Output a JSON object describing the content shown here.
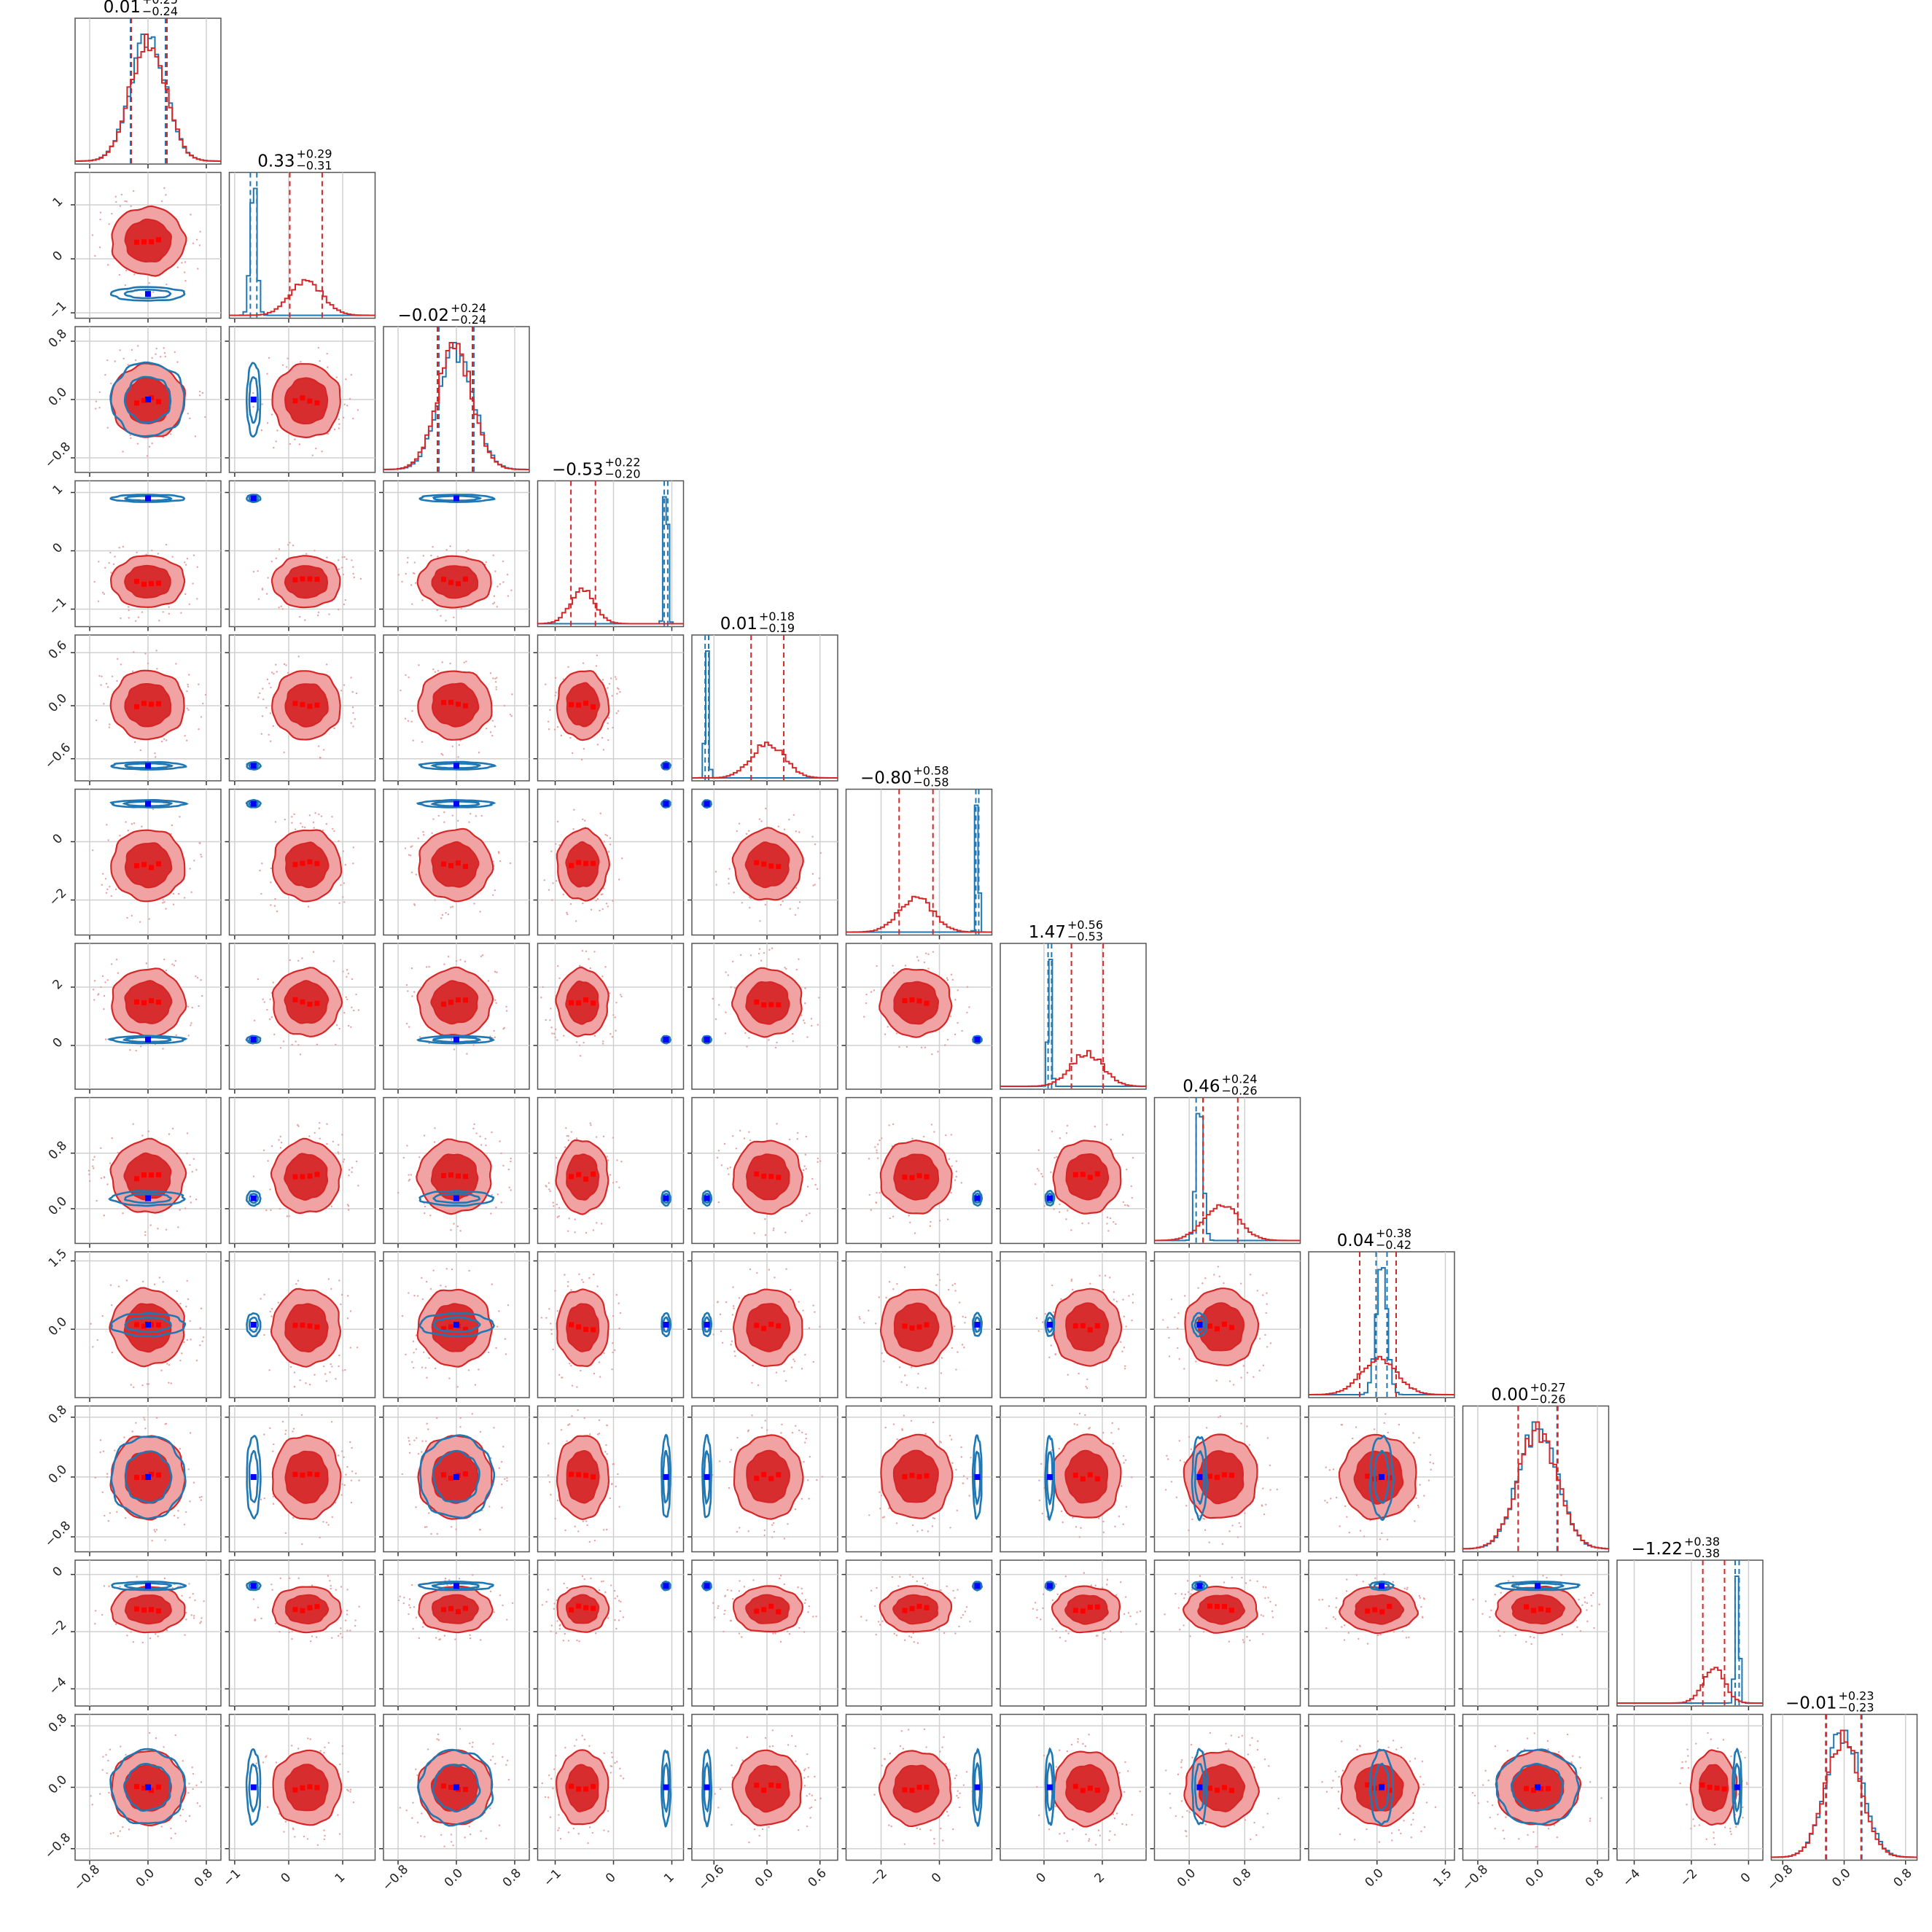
{
  "figure": {
    "type": "corner-plot",
    "n_params": 12,
    "series": [
      {
        "color": "#d62728",
        "fill_outer": "#f1a3a3",
        "fill_inner": "#d62728",
        "marker": "#ff0000"
      },
      {
        "color": "#1f77b4",
        "marker": "#0000ff"
      }
    ]
  },
  "chart_data": {
    "type": "corner",
    "params": [
      {
        "title": "0.01",
        "plus": "+0.25",
        "minus": "−0.24",
        "median": 0.01,
        "lo": -0.23,
        "hi": 0.26,
        "range": [
          -1.0,
          1.0
        ],
        "ticks": [
          "−0.8",
          "0.0",
          "0.8"
        ],
        "tick_values": [
          -0.8,
          0.0,
          0.8
        ],
        "red": {
          "m": 0.0,
          "s": 0.24
        },
        "blue": {
          "m": 0.0,
          "s": 0.24
        }
      },
      {
        "title": "0.33",
        "plus": "+0.29",
        "minus": "−0.31",
        "median": 0.33,
        "lo": 0.02,
        "hi": 0.62,
        "range": [
          -1.1,
          1.6
        ],
        "ticks": [
          "−1",
          "0",
          "1"
        ],
        "tick_values": [
          -1,
          0,
          1
        ],
        "red": {
          "m": 0.33,
          "s": 0.3
        },
        "blue": {
          "m": -0.65,
          "s": 0.06
        }
      },
      {
        "title": "−0.02",
        "plus": "+0.24",
        "minus": "−0.24",
        "median": -0.02,
        "lo": -0.26,
        "hi": 0.22,
        "range": [
          -1.0,
          1.0
        ],
        "ticks": [
          "−0.8",
          "0.0",
          "0.8"
        ],
        "tick_values": [
          -0.8,
          0.0,
          0.8
        ],
        "red": {
          "m": -0.02,
          "s": 0.24
        },
        "blue": {
          "m": 0.0,
          "s": 0.24
        }
      },
      {
        "title": "−0.53",
        "plus": "+0.22",
        "minus": "−0.20",
        "median": -0.53,
        "lo": -0.73,
        "hi": -0.31,
        "range": [
          -1.3,
          1.2
        ],
        "ticks": [
          "−1",
          "0",
          "1"
        ],
        "tick_values": [
          -1,
          0,
          1
        ],
        "red": {
          "m": -0.53,
          "s": 0.21
        },
        "blue": {
          "m": 0.9,
          "s": 0.03
        }
      },
      {
        "title": "0.01",
        "plus": "+0.18",
        "minus": "−0.19",
        "median": 0.01,
        "lo": -0.18,
        "hi": 0.19,
        "range": [
          -0.85,
          0.8
        ],
        "ticks": [
          "−0.6",
          "0.0",
          "0.6"
        ],
        "tick_values": [
          -0.6,
          0.0,
          0.6
        ],
        "red": {
          "m": 0.01,
          "s": 0.185
        },
        "blue": {
          "m": -0.68,
          "s": 0.02
        }
      },
      {
        "title": "−0.80",
        "plus": "+0.58",
        "minus": "−0.58",
        "median": -0.8,
        "lo": -1.38,
        "hi": -0.22,
        "range": [
          -3.2,
          1.8
        ],
        "ticks": [
          "−2",
          "0"
        ],
        "tick_values": [
          -2,
          0
        ],
        "red": {
          "m": -0.8,
          "s": 0.58
        },
        "blue": {
          "m": 1.3,
          "s": 0.05
        }
      },
      {
        "title": "1.47",
        "plus": "+0.56",
        "minus": "−0.53",
        "median": 1.47,
        "lo": 0.94,
        "hi": 2.03,
        "range": [
          -1.5,
          3.5
        ],
        "ticks": [
          "0",
          "2"
        ],
        "tick_values": [
          0,
          2
        ],
        "red": {
          "m": 1.47,
          "s": 0.55
        },
        "blue": {
          "m": 0.2,
          "s": 0.06
        }
      },
      {
        "title": "0.46",
        "plus": "+0.24",
        "minus": "−0.26",
        "median": 0.46,
        "lo": 0.2,
        "hi": 0.7,
        "range": [
          -0.5,
          1.6
        ],
        "ticks": [
          "0.0",
          "0.8"
        ],
        "tick_values": [
          0.0,
          0.8
        ],
        "red": {
          "m": 0.46,
          "s": 0.25
        },
        "blue": {
          "m": 0.15,
          "s": 0.05
        }
      },
      {
        "title": "0.04",
        "plus": "+0.38",
        "minus": "−0.42",
        "median": 0.04,
        "lo": -0.38,
        "hi": 0.42,
        "range": [
          -1.5,
          1.7
        ],
        "ticks": [
          "0.0",
          "1.5"
        ],
        "tick_values": [
          0.0,
          1.5
        ],
        "red": {
          "m": 0.04,
          "s": 0.4
        },
        "blue": {
          "m": 0.1,
          "s": 0.12
        }
      },
      {
        "title": "0.00",
        "plus": "+0.27",
        "minus": "−0.26",
        "median": 0.0,
        "lo": -0.26,
        "hi": 0.27,
        "range": [
          -1.0,
          0.95
        ],
        "ticks": [
          "−0.8",
          "0.0",
          "0.8"
        ],
        "tick_values": [
          -0.8,
          0.0,
          0.8
        ],
        "red": {
          "m": 0.0,
          "s": 0.265
        },
        "blue": {
          "m": 0.0,
          "s": 0.26
        }
      },
      {
        "title": "−1.22",
        "plus": "+0.38",
        "minus": "−0.38",
        "median": -1.22,
        "lo": -1.6,
        "hi": -0.84,
        "range": [
          -4.6,
          0.5
        ],
        "ticks": [
          "−4",
          "−2",
          "0"
        ],
        "tick_values": [
          -4,
          -2,
          0
        ],
        "red": {
          "m": -1.22,
          "s": 0.38
        },
        "blue": {
          "m": -0.4,
          "s": 0.07
        }
      },
      {
        "title": "−0.01",
        "plus": "+0.23",
        "minus": "−0.23",
        "median": -0.01,
        "lo": -0.24,
        "hi": 0.22,
        "range": [
          -0.95,
          0.95
        ],
        "ticks": [
          "−0.8",
          "0.0",
          "0.8"
        ],
        "tick_values": [
          -0.8,
          0.0,
          0.8
        ],
        "red": {
          "m": -0.01,
          "s": 0.23
        },
        "blue": {
          "m": 0.0,
          "s": 0.23
        }
      }
    ]
  }
}
